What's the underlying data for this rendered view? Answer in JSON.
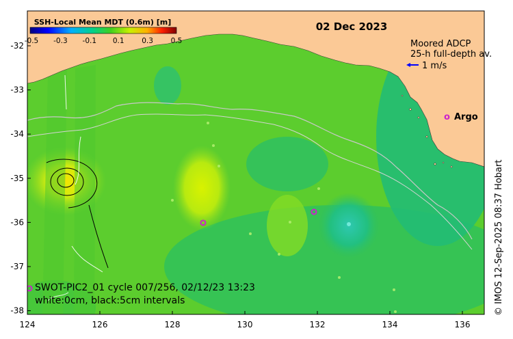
{
  "title_date": "02 Dec 2023",
  "colorbar": {
    "title": "SSH-Local Mean MDT (0.6m) [m]",
    "ticks": [
      "-0.5",
      "-0.3",
      "-0.1",
      "0.1",
      "0.3",
      "0.5"
    ]
  },
  "adcp_legend": {
    "line1": "Moored ADCP",
    "line2": "25-h full-depth av.",
    "scale": "1 m/s"
  },
  "argo_legend": {
    "marker": "o",
    "label": "Argo"
  },
  "swot_caption": {
    "line1": "SWOT-PIC2_01 cycle 007/256, 02/12/23 13:23",
    "line2": "white:0cm, black:5cm intervals"
  },
  "credit": "© IMOS 12-Sep-2025 08:37 Hobart",
  "axes": {
    "x_ticks": [
      "124",
      "126",
      "128",
      "130",
      "132",
      "134",
      "136"
    ],
    "y_ticks": [
      "-32",
      "-33",
      "-34",
      "-35",
      "-36",
      "-37",
      "-38"
    ]
  },
  "colors": {
    "land": "#fbc996",
    "ocean_base": "#5ccd2e",
    "argo": "#cc22cc",
    "adcp_arrow": "#0000ff"
  }
}
